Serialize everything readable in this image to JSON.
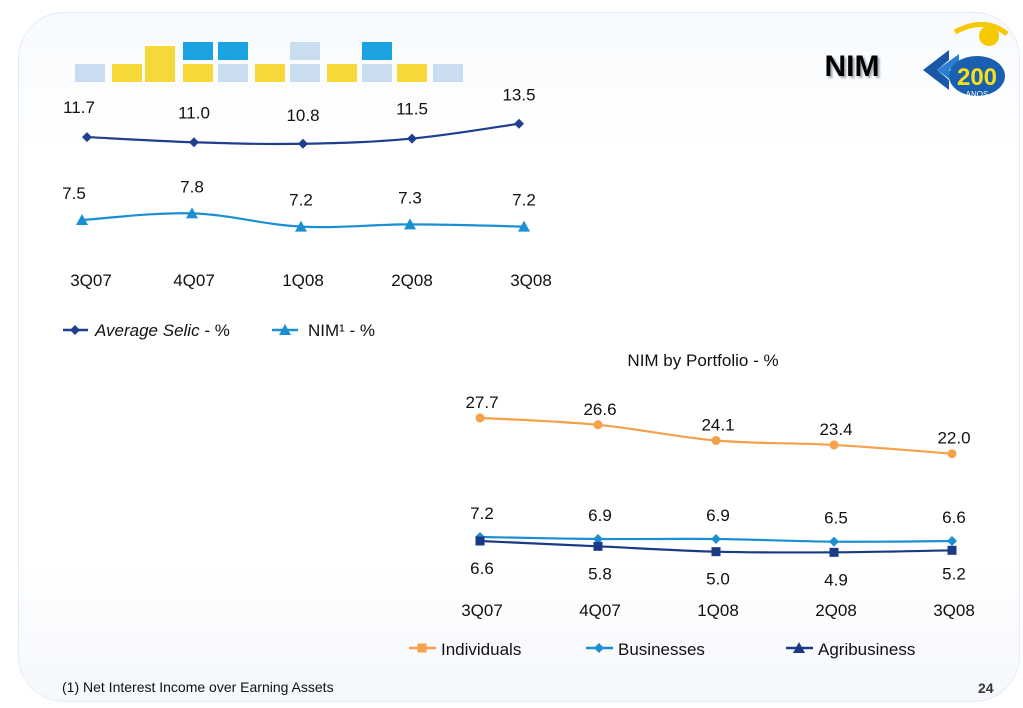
{
  "slide": {
    "title": "NIM",
    "footnote": "(1) Net Interest Income over Earning Assets",
    "page_number": "24"
  },
  "logo": {
    "text": "200",
    "subtext": "ANOS",
    "icon": "banco-do-brasil-200-anos-logo"
  },
  "colors": {
    "selic": "#1f3f8c",
    "nim": "#1a8fd1",
    "individuals": "#f5a04a",
    "businesses": "#1a8fd1",
    "agribusiness": "#1a3a86",
    "banner_yellow": "#f7d83a",
    "banner_blue": "#1aa3e0",
    "banner_light": "#c9dcf0"
  },
  "chart_data": [
    {
      "type": "line",
      "title": "",
      "categories": [
        "3Q07",
        "4Q07",
        "1Q08",
        "2Q08",
        "3Q08"
      ],
      "legend_position": "bottom-left",
      "series": [
        {
          "name": "Average Selic",
          "suffix": " - %",
          "marker": "diamond",
          "values": [
            11.7,
            11.0,
            10.8,
            11.5,
            13.5
          ],
          "labels": [
            "11.7",
            "11.0",
            "10.8",
            "11.5",
            "13.5"
          ]
        },
        {
          "name": "NIM¹",
          "suffix": " - %",
          "marker": "triangle",
          "values": [
            7.5,
            7.8,
            7.2,
            7.3,
            7.2
          ],
          "labels": [
            "7.5",
            "7.8",
            "7.2",
            "7.3",
            "7.2"
          ]
        }
      ]
    },
    {
      "type": "line",
      "title": "NIM by Portfolio - %",
      "categories": [
        "3Q07",
        "4Q07",
        "1Q08",
        "2Q08",
        "3Q08"
      ],
      "legend_position": "bottom",
      "series": [
        {
          "name": "Individuals",
          "marker": "circle",
          "values": [
            27.7,
            26.6,
            24.1,
            23.4,
            22.0
          ],
          "labels": [
            "27.7",
            "26.6",
            "24.1",
            "23.4",
            "22.0"
          ]
        },
        {
          "name": "Businesses",
          "marker": "diamond",
          "values": [
            7.2,
            6.9,
            6.9,
            6.5,
            6.6
          ],
          "labels": [
            "7.2",
            "6.9",
            "6.9",
            "6.5",
            "6.6"
          ]
        },
        {
          "name": "Agribusiness",
          "marker": "square",
          "values": [
            6.6,
            5.8,
            5.0,
            4.9,
            5.2
          ],
          "labels": [
            "6.6",
            "5.8",
            "5.0",
            "4.9",
            "5.2"
          ]
        }
      ]
    }
  ]
}
